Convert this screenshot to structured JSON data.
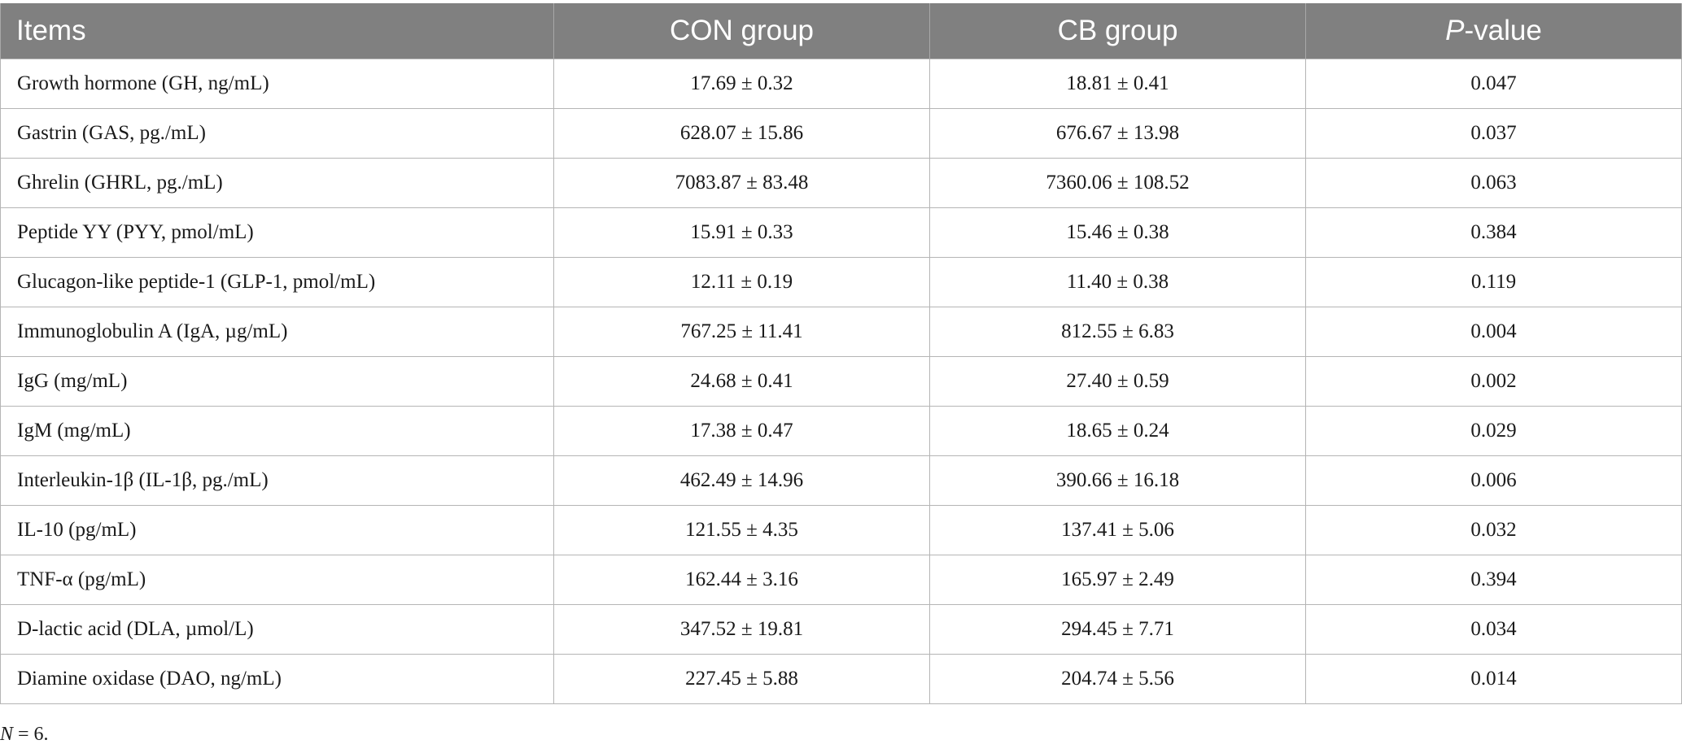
{
  "table": {
    "headers": {
      "items": "Items",
      "con": "CON group",
      "cb": "CB group",
      "p_italic": "P",
      "p_rest": "-value"
    },
    "rows": [
      {
        "item": "Growth hormone (GH, ng/mL)",
        "con": "17.69 ± 0.32",
        "cb": "18.81 ± 0.41",
        "p": "0.047"
      },
      {
        "item": "Gastrin (GAS, pg./mL)",
        "con": "628.07 ± 15.86",
        "cb": "676.67 ± 13.98",
        "p": "0.037"
      },
      {
        "item": "Ghrelin (GHRL, pg./mL)",
        "con": "7083.87 ± 83.48",
        "cb": "7360.06 ± 108.52",
        "p": "0.063"
      },
      {
        "item": "Peptide YY (PYY, pmol/mL)",
        "con": "15.91 ± 0.33",
        "cb": "15.46 ± 0.38",
        "p": "0.384"
      },
      {
        "item": "Glucagon-like peptide-1 (GLP-1, pmol/mL)",
        "con": "12.11 ± 0.19",
        "cb": "11.40 ± 0.38",
        "p": "0.119"
      },
      {
        "item": "Immunoglobulin A (IgA, µg/mL)",
        "con": "767.25 ± 11.41",
        "cb": "812.55 ± 6.83",
        "p": "0.004"
      },
      {
        "item": "IgG (mg/mL)",
        "con": "24.68 ± 0.41",
        "cb": "27.40 ± 0.59",
        "p": "0.002"
      },
      {
        "item": "IgM (mg/mL)",
        "con": "17.38 ± 0.47",
        "cb": "18.65 ± 0.24",
        "p": "0.029"
      },
      {
        "item": "Interleukin-1β (IL-1β, pg./mL)",
        "con": "462.49 ± 14.96",
        "cb": "390.66 ± 16.18",
        "p": "0.006"
      },
      {
        "item": "IL-10 (pg/mL)",
        "con": "121.55 ± 4.35",
        "cb": "137.41 ± 5.06",
        "p": "0.032"
      },
      {
        "item": "TNF-α (pg/mL)",
        "con": "162.44 ± 3.16",
        "cb": "165.97 ± 2.49",
        "p": "0.394"
      },
      {
        "item": "D-lactic acid (DLA, µmol/L)",
        "con": "347.52 ± 19.81",
        "cb": "294.45 ± 7.71",
        "p": "0.034"
      },
      {
        "item": "Diamine oxidase (DAO, ng/mL)",
        "con": "227.45 ± 5.88",
        "cb": "204.74 ± 5.56",
        "p": "0.014"
      }
    ]
  },
  "footnote": {
    "n_italic": "N",
    "rest": " = 6."
  }
}
